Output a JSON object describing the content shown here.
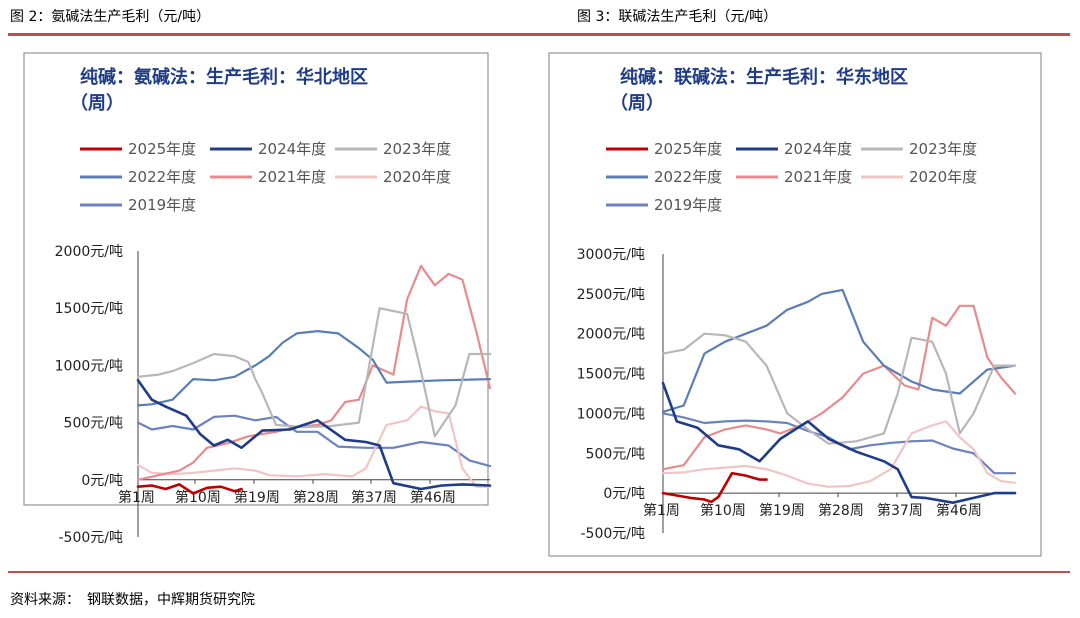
{
  "figures": [
    {
      "caption": "图 2：氨碱法生产毛利（元/吨）"
    },
    {
      "caption": "图 3：联碱法生产毛利（元/吨）"
    }
  ],
  "source": "资料来源：　钢联数据，中辉期货研究院",
  "chart_data": [
    {
      "type": "line",
      "title_lines": [
        "纯碱：氨碱法：生产毛利：华北地区",
        "（周）"
      ],
      "ylim": [
        -500,
        2000
      ],
      "yticks": [
        -500,
        0,
        500,
        1000,
        1500,
        2000
      ],
      "ytick_labels": [
        "-500元/吨",
        "0元/吨",
        "500元/吨",
        "1000元/吨",
        "1500元/吨",
        "2000元/吨"
      ],
      "xticks": [
        1,
        10,
        19,
        28,
        37,
        46
      ],
      "xtick_labels": [
        "第1周",
        "第10周",
        "第19周",
        "第28周",
        "第37周",
        "第46周"
      ],
      "series": [
        {
          "name": "2025年度",
          "color": "#c00000",
          "points": [
            [
              1,
              -60
            ],
            [
              3,
              -50
            ],
            [
              5,
              -80
            ],
            [
              7,
              -40
            ],
            [
              9,
              -120
            ],
            [
              11,
              -70
            ],
            [
              13,
              -60
            ],
            [
              15,
              -100
            ],
            [
              16,
              -80
            ]
          ]
        },
        {
          "name": "2024年度",
          "color": "#1f3c88",
          "points": [
            [
              1,
              870
            ],
            [
              3,
              700
            ],
            [
              5,
              640
            ],
            [
              8,
              560
            ],
            [
              10,
              400
            ],
            [
              12,
              300
            ],
            [
              14,
              350
            ],
            [
              16,
              280
            ],
            [
              19,
              430
            ],
            [
              23,
              440
            ],
            [
              27,
              520
            ],
            [
              31,
              350
            ],
            [
              34,
              330
            ],
            [
              36,
              300
            ],
            [
              38,
              -30
            ],
            [
              42,
              -80
            ],
            [
              45,
              -50
            ],
            [
              48,
              -40
            ],
            [
              52,
              -50
            ]
          ]
        },
        {
          "name": "2023年度",
          "color": "#b7b7b7",
          "points": [
            [
              1,
              900
            ],
            [
              4,
              920
            ],
            [
              6,
              950
            ],
            [
              9,
              1020
            ],
            [
              12,
              1100
            ],
            [
              15,
              1080
            ],
            [
              17,
              1030
            ],
            [
              18,
              880
            ],
            [
              19,
              760
            ],
            [
              21,
              480
            ],
            [
              25,
              460
            ],
            [
              29,
              470
            ],
            [
              33,
              500
            ],
            [
              36,
              1500
            ],
            [
              40,
              1450
            ],
            [
              42,
              950
            ],
            [
              44,
              380
            ],
            [
              47,
              650
            ],
            [
              49,
              1100
            ],
            [
              52,
              1100
            ]
          ]
        },
        {
          "name": "2022年度",
          "color": "#5b7db5",
          "points": [
            [
              1,
              650
            ],
            [
              3,
              660
            ],
            [
              6,
              700
            ],
            [
              9,
              880
            ],
            [
              12,
              870
            ],
            [
              15,
              900
            ],
            [
              18,
              1000
            ],
            [
              20,
              1080
            ],
            [
              22,
              1200
            ],
            [
              24,
              1280
            ],
            [
              27,
              1300
            ],
            [
              30,
              1280
            ],
            [
              33,
              1150
            ],
            [
              35,
              1050
            ],
            [
              37,
              850
            ],
            [
              41,
              860
            ],
            [
              45,
              870
            ],
            [
              52,
              880
            ]
          ]
        },
        {
          "name": "2021年度",
          "color": "#e88a8e",
          "points": [
            [
              1,
              0
            ],
            [
              4,
              40
            ],
            [
              7,
              80
            ],
            [
              9,
              150
            ],
            [
              11,
              280
            ],
            [
              14,
              320
            ],
            [
              17,
              380
            ],
            [
              21,
              420
            ],
            [
              24,
              460
            ],
            [
              27,
              480
            ],
            [
              29,
              520
            ],
            [
              31,
              680
            ],
            [
              33,
              700
            ],
            [
              35,
              1000
            ],
            [
              38,
              920
            ],
            [
              40,
              1580
            ],
            [
              42,
              1870
            ],
            [
              44,
              1700
            ],
            [
              46,
              1800
            ],
            [
              48,
              1750
            ],
            [
              50,
              1300
            ],
            [
              52,
              800
            ]
          ]
        },
        {
          "name": "2020年度",
          "color": "#f2c4c4",
          "points": [
            [
              1,
              130
            ],
            [
              3,
              60
            ],
            [
              6,
              50
            ],
            [
              9,
              60
            ],
            [
              12,
              80
            ],
            [
              15,
              100
            ],
            [
              18,
              80
            ],
            [
              20,
              40
            ],
            [
              24,
              30
            ],
            [
              28,
              50
            ],
            [
              32,
              30
            ],
            [
              34,
              100
            ],
            [
              37,
              480
            ],
            [
              40,
              520
            ],
            [
              42,
              640
            ],
            [
              44,
              600
            ],
            [
              46,
              580
            ],
            [
              48,
              100
            ],
            [
              50,
              -60
            ],
            [
              52,
              -60
            ]
          ]
        },
        {
          "name": "2019年度",
          "color": "#6a83be",
          "points": [
            [
              1,
              500
            ],
            [
              3,
              440
            ],
            [
              6,
              470
            ],
            [
              9,
              440
            ],
            [
              12,
              550
            ],
            [
              15,
              560
            ],
            [
              18,
              520
            ],
            [
              21,
              550
            ],
            [
              24,
              420
            ],
            [
              27,
              420
            ],
            [
              30,
              290
            ],
            [
              34,
              280
            ],
            [
              38,
              280
            ],
            [
              42,
              330
            ],
            [
              46,
              300
            ],
            [
              49,
              170
            ],
            [
              52,
              120
            ]
          ]
        }
      ]
    },
    {
      "type": "line",
      "title_lines": [
        "纯碱：联碱法：生产毛利：华东地区",
        "（周）"
      ],
      "ylim": [
        -500,
        3000
      ],
      "yticks": [
        -500,
        0,
        500,
        1000,
        1500,
        2000,
        2500,
        3000
      ],
      "ytick_labels": [
        "-500元/吨",
        "0元/吨",
        "500元/吨",
        "1000元/吨",
        "1500元/吨",
        "2000元/吨",
        "2500元/吨",
        "3000元/吨"
      ],
      "xticks": [
        1,
        10,
        19,
        28,
        37,
        46
      ],
      "xtick_labels": [
        "第1周",
        "第10周",
        "第19周",
        "第28周",
        "第37周",
        "第46周"
      ],
      "series": [
        {
          "name": "2025年度",
          "color": "#c00000",
          "points": [
            [
              1,
              0
            ],
            [
              3,
              -30
            ],
            [
              5,
              -60
            ],
            [
              7,
              -80
            ],
            [
              8,
              -110
            ],
            [
              9,
              -50
            ],
            [
              11,
              250
            ],
            [
              13,
              220
            ],
            [
              15,
              170
            ],
            [
              16,
              170
            ]
          ]
        },
        {
          "name": "2024年度",
          "color": "#1f3c88",
          "points": [
            [
              1,
              1380
            ],
            [
              3,
              900
            ],
            [
              6,
              820
            ],
            [
              9,
              600
            ],
            [
              12,
              550
            ],
            [
              15,
              400
            ],
            [
              18,
              680
            ],
            [
              22,
              900
            ],
            [
              25,
              680
            ],
            [
              29,
              520
            ],
            [
              33,
              400
            ],
            [
              35,
              300
            ],
            [
              37,
              -50
            ],
            [
              39,
              -60
            ],
            [
              43,
              -120
            ],
            [
              46,
              -60
            ],
            [
              49,
              0
            ],
            [
              52,
              0
            ]
          ]
        },
        {
          "name": "2023年度",
          "color": "#b7b7b7",
          "points": [
            [
              1,
              1750
            ],
            [
              4,
              1800
            ],
            [
              7,
              2000
            ],
            [
              10,
              1980
            ],
            [
              13,
              1900
            ],
            [
              16,
              1600
            ],
            [
              19,
              1000
            ],
            [
              22,
              800
            ],
            [
              25,
              620
            ],
            [
              29,
              650
            ],
            [
              33,
              750
            ],
            [
              35,
              1250
            ],
            [
              37,
              1950
            ],
            [
              40,
              1900
            ],
            [
              42,
              1500
            ],
            [
              44,
              750
            ],
            [
              46,
              1000
            ],
            [
              49,
              1600
            ],
            [
              52,
              1600
            ]
          ]
        },
        {
          "name": "2022年度",
          "color": "#5b7db5",
          "points": [
            [
              1,
              1020
            ],
            [
              4,
              1100
            ],
            [
              7,
              1750
            ],
            [
              10,
              1900
            ],
            [
              13,
              2000
            ],
            [
              16,
              2100
            ],
            [
              19,
              2300
            ],
            [
              22,
              2400
            ],
            [
              24,
              2500
            ],
            [
              27,
              2550
            ],
            [
              30,
              1900
            ],
            [
              33,
              1600
            ],
            [
              35,
              1500
            ],
            [
              37,
              1400
            ],
            [
              40,
              1300
            ],
            [
              44,
              1250
            ],
            [
              48,
              1550
            ],
            [
              52,
              1600
            ]
          ]
        },
        {
          "name": "2021年度",
          "color": "#e88a8e",
          "points": [
            [
              1,
              300
            ],
            [
              4,
              350
            ],
            [
              7,
              700
            ],
            [
              10,
              800
            ],
            [
              13,
              850
            ],
            [
              16,
              800
            ],
            [
              18,
              750
            ],
            [
              21,
              850
            ],
            [
              24,
              1000
            ],
            [
              27,
              1200
            ],
            [
              30,
              1500
            ],
            [
              33,
              1600
            ],
            [
              36,
              1350
            ],
            [
              38,
              1300
            ],
            [
              40,
              2200
            ],
            [
              42,
              2100
            ],
            [
              44,
              2350
            ],
            [
              46,
              2350
            ],
            [
              48,
              1700
            ],
            [
              50,
              1450
            ],
            [
              52,
              1250
            ]
          ]
        },
        {
          "name": "2020年度",
          "color": "#f2c4c4",
          "points": [
            [
              1,
              250
            ],
            [
              4,
              260
            ],
            [
              7,
              300
            ],
            [
              10,
              320
            ],
            [
              13,
              340
            ],
            [
              16,
              300
            ],
            [
              19,
              220
            ],
            [
              22,
              120
            ],
            [
              25,
              80
            ],
            [
              28,
              90
            ],
            [
              31,
              150
            ],
            [
              34,
              300
            ],
            [
              37,
              750
            ],
            [
              40,
              850
            ],
            [
              42,
              900
            ],
            [
              44,
              700
            ],
            [
              46,
              550
            ],
            [
              48,
              250
            ],
            [
              50,
              150
            ],
            [
              52,
              130
            ]
          ]
        },
        {
          "name": "2019年度",
          "color": "#6a83be",
          "points": [
            [
              1,
              1000
            ],
            [
              4,
              950
            ],
            [
              7,
              880
            ],
            [
              10,
              900
            ],
            [
              13,
              910
            ],
            [
              16,
              900
            ],
            [
              19,
              880
            ],
            [
              22,
              780
            ],
            [
              25,
              700
            ],
            [
              28,
              550
            ],
            [
              31,
              600
            ],
            [
              34,
              630
            ],
            [
              37,
              650
            ],
            [
              40,
              660
            ],
            [
              43,
              560
            ],
            [
              46,
              500
            ],
            [
              49,
              250
            ],
            [
              52,
              250
            ]
          ]
        }
      ]
    }
  ]
}
